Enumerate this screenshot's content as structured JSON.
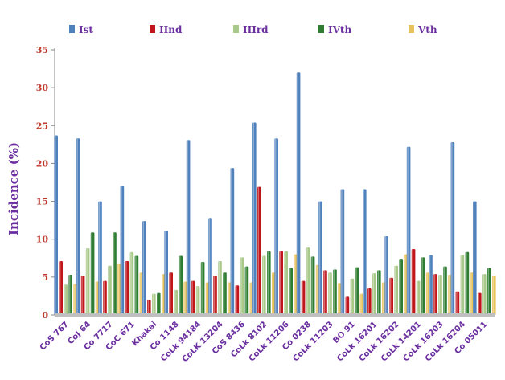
{
  "chart_data": {
    "type": "bar",
    "title": "",
    "xlabel": "",
    "ylabel": "Incidence (%)",
    "ylim": [
      0,
      35
    ],
    "yticks": [
      0,
      5,
      10,
      15,
      20,
      25,
      30,
      35
    ],
    "grid": false,
    "legend_position": "top",
    "categories": [
      "CoS 767",
      "CoJ 64",
      "Co 7717",
      "CoC 671",
      "Khakai",
      "Co 1148",
      "CoLk 94184",
      "CoLK 13204",
      "CoS 8436",
      "CoLk 8102",
      "CoLk 11206",
      "Co 0238",
      "CoLk 11203",
      "BO 91",
      "CoLk 16201",
      "CoLk 16202",
      "CoLk 14201",
      "CoLk 16203",
      "CoLk 16204",
      "Co 05011"
    ],
    "series": [
      {
        "name": "Ist",
        "color": "#4f81bd",
        "values": [
          23.7,
          23.3,
          15.0,
          17.0,
          12.4,
          11.1,
          23.1,
          12.8,
          19.4,
          25.4,
          23.3,
          32.0,
          15.0,
          16.6,
          16.6,
          10.4,
          22.2,
          7.9,
          22.8,
          15.0
        ]
      },
      {
        "name": "IInd",
        "color": "#c0161b",
        "values": [
          7.1,
          5.2,
          4.5,
          7.1,
          2.0,
          5.6,
          4.5,
          5.2,
          3.9,
          16.9,
          8.4,
          4.5,
          5.9,
          2.4,
          3.5,
          4.9,
          8.7,
          5.4,
          3.1,
          2.9
        ]
      },
      {
        "name": "IIIrd",
        "color": "#a9c98a",
        "values": [
          4.0,
          8.8,
          6.5,
          8.3,
          2.8,
          3.3,
          3.8,
          7.1,
          7.6,
          7.8,
          8.4,
          8.9,
          5.6,
          4.8,
          5.5,
          6.5,
          4.5,
          5.3,
          7.9,
          5.4
        ]
      },
      {
        "name": "IVth",
        "color": "#2e7d32",
        "values": [
          5.3,
          10.9,
          10.9,
          7.8,
          2.9,
          7.8,
          7.0,
          5.6,
          6.4,
          8.4,
          6.2,
          7.7,
          6.0,
          6.3,
          5.9,
          7.3,
          7.6,
          6.4,
          8.3,
          6.2
        ]
      },
      {
        "name": "Vth",
        "color": "#e8c25a",
        "values": [
          4.1,
          4.4,
          6.8,
          5.6,
          5.4,
          4.4,
          4.3,
          4.3,
          4.3,
          5.6,
          8.0,
          6.6,
          4.2,
          2.8,
          4.3,
          8.0,
          5.6,
          5.3,
          5.6,
          5.2
        ]
      }
    ]
  }
}
